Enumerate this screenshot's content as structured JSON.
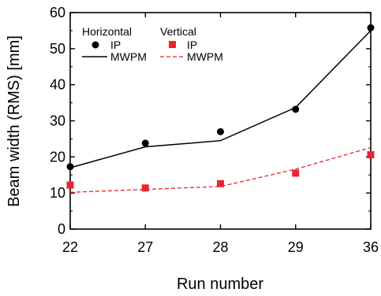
{
  "chart_data": {
    "type": "scatter",
    "xlabel": "Run number",
    "ylabel": "Beam width (RMS) [mm]",
    "categories": [
      "22",
      "27",
      "28",
      "29",
      "36"
    ],
    "ylim": [
      0,
      60
    ],
    "yticks": [
      0,
      10,
      20,
      30,
      40,
      50,
      60
    ],
    "grid": false,
    "legend": {
      "groups": [
        {
          "title": "Horizontal",
          "entries": [
            "IP",
            "MWPM"
          ]
        },
        {
          "title": "Vertical",
          "entries": [
            "IP",
            "MWPM"
          ]
        }
      ],
      "placement": "top-left"
    },
    "series": [
      {
        "group": "Horizontal",
        "name": "IP",
        "kind": "markers",
        "marker": "circle",
        "color": "#000000",
        "values": [
          17.3,
          23.8,
          27.0,
          33.2,
          55.8
        ]
      },
      {
        "group": "Horizontal",
        "name": "MWPM",
        "kind": "line",
        "dash": "solid",
        "color": "#000000",
        "values": [
          17.0,
          22.8,
          24.5,
          33.7,
          55.0
        ]
      },
      {
        "group": "Vertical",
        "name": "IP",
        "kind": "markers",
        "marker": "square",
        "color": "#e8262e",
        "values": [
          12.2,
          11.4,
          12.6,
          15.5,
          20.6
        ]
      },
      {
        "group": "Vertical",
        "name": "MWPM",
        "kind": "line",
        "dash": "dashed",
        "color": "#e8262e",
        "values": [
          10.2,
          11.0,
          11.8,
          16.6,
          22.6
        ]
      }
    ]
  }
}
